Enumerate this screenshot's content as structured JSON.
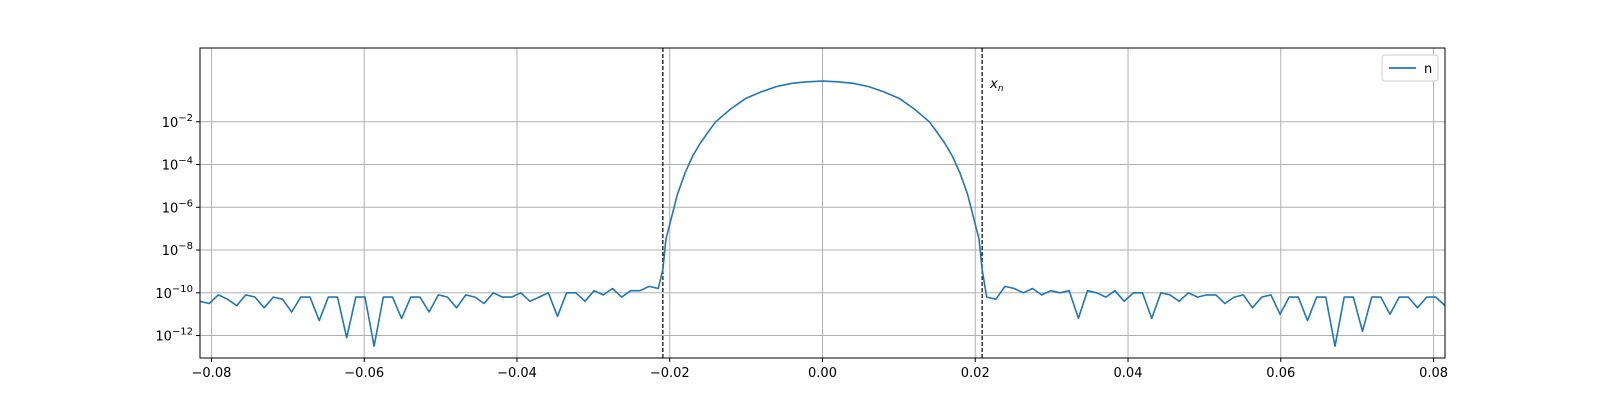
{
  "chart_data": {
    "type": "line",
    "title": "",
    "xlabel": "",
    "ylabel": "",
    "xlim": [
      -0.0815,
      0.0815
    ],
    "ylim_log10": [
      -13.05,
      1.45
    ],
    "yscale": "log",
    "grid": true,
    "legend": {
      "placement": "top-right"
    },
    "xticks": [
      {
        "value": -0.08,
        "label": "−0.08"
      },
      {
        "value": -0.06,
        "label": "−0.06"
      },
      {
        "value": -0.04,
        "label": "−0.04"
      },
      {
        "value": -0.02,
        "label": "−0.02"
      },
      {
        "value": 0.0,
        "label": "0.00"
      },
      {
        "value": 0.02,
        "label": "0.02"
      },
      {
        "value": 0.04,
        "label": "0.04"
      },
      {
        "value": 0.06,
        "label": "0.06"
      },
      {
        "value": 0.08,
        "label": "0.08"
      }
    ],
    "yticks": [
      {
        "exp": -2,
        "base": "10",
        "power": "−2"
      },
      {
        "exp": -4,
        "base": "10",
        "power": "−4"
      },
      {
        "exp": -6,
        "base": "10",
        "power": "−6"
      },
      {
        "exp": -8,
        "base": "10",
        "power": "−8"
      },
      {
        "exp": -10,
        "base": "10",
        "power": "−10"
      },
      {
        "exp": -12,
        "base": "10",
        "power": "−12"
      }
    ],
    "series": [
      {
        "name": "n",
        "color": "#1f77b4",
        "x": [
          -0.0815,
          -0.0803,
          -0.0791,
          -0.0779,
          -0.0767,
          -0.0755,
          -0.0743,
          -0.0731,
          -0.0719,
          -0.0707,
          -0.0695,
          -0.0683,
          -0.0671,
          -0.0659,
          -0.0647,
          -0.0635,
          -0.0623,
          -0.0611,
          -0.0599,
          -0.0587,
          -0.0575,
          -0.0563,
          -0.0551,
          -0.0539,
          -0.0527,
          -0.0515,
          -0.0503,
          -0.0491,
          -0.0479,
          -0.0467,
          -0.0455,
          -0.0443,
          -0.0431,
          -0.0419,
          -0.0407,
          -0.0395,
          -0.0383,
          -0.0371,
          -0.0359,
          -0.0347,
          -0.0335,
          -0.0323,
          -0.0311,
          -0.0299,
          -0.0287,
          -0.0275,
          -0.0263,
          -0.0251,
          -0.0239,
          -0.0227,
          -0.0215,
          -0.0209,
          -0.0205,
          -0.02,
          -0.019,
          -0.018,
          -0.017,
          -0.016,
          -0.015,
          -0.014,
          -0.012,
          -0.01,
          -0.008,
          -0.006,
          -0.004,
          -0.002,
          0.0,
          0.002,
          0.004,
          0.006,
          0.008,
          0.01,
          0.012,
          0.014,
          0.015,
          0.016,
          0.017,
          0.018,
          0.019,
          0.02,
          0.0205,
          0.0209,
          0.0215,
          0.0227,
          0.0239,
          0.0251,
          0.0263,
          0.0275,
          0.0287,
          0.0299,
          0.0311,
          0.0323,
          0.0335,
          0.0347,
          0.0359,
          0.0371,
          0.0383,
          0.0395,
          0.0407,
          0.0419,
          0.0431,
          0.0443,
          0.0455,
          0.0467,
          0.0479,
          0.0491,
          0.0503,
          0.0515,
          0.0527,
          0.0539,
          0.0551,
          0.0563,
          0.0575,
          0.0587,
          0.0599,
          0.0611,
          0.0623,
          0.0635,
          0.0647,
          0.0659,
          0.0671,
          0.0683,
          0.0695,
          0.0707,
          0.0719,
          0.0731,
          0.0743,
          0.0755,
          0.0767,
          0.0779,
          0.0791,
          0.0803,
          0.0815
        ],
        "log10_y": [
          -10.4,
          -10.5,
          -10.1,
          -10.3,
          -10.6,
          -10.1,
          -10.2,
          -10.7,
          -10.2,
          -10.3,
          -10.9,
          -10.2,
          -10.2,
          -11.3,
          -10.2,
          -10.2,
          -12.1,
          -10.2,
          -10.2,
          -12.5,
          -10.2,
          -10.2,
          -11.2,
          -10.2,
          -10.2,
          -10.9,
          -10.1,
          -10.2,
          -10.7,
          -10.1,
          -10.2,
          -10.5,
          -10.0,
          -10.2,
          -10.2,
          -10.0,
          -10.4,
          -10.2,
          -10.0,
          -11.1,
          -10.0,
          -10.0,
          -10.4,
          -9.9,
          -10.1,
          -9.8,
          -10.2,
          -9.9,
          -9.9,
          -9.7,
          -9.8,
          -8.9,
          -7.5,
          -6.8,
          -5.4,
          -4.4,
          -3.6,
          -3.0,
          -2.5,
          -2.0,
          -1.4,
          -0.9,
          -0.6,
          -0.35,
          -0.2,
          -0.13,
          -0.1,
          -0.13,
          -0.2,
          -0.35,
          -0.6,
          -0.9,
          -1.4,
          -2.0,
          -2.5,
          -3.0,
          -3.6,
          -4.4,
          -5.4,
          -6.8,
          -7.5,
          -8.9,
          -10.2,
          -10.3,
          -9.7,
          -9.8,
          -10.0,
          -9.8,
          -10.1,
          -9.9,
          -10.0,
          -9.9,
          -11.2,
          -9.9,
          -10.0,
          -10.2,
          -9.9,
          -10.4,
          -10.0,
          -10.0,
          -11.2,
          -10.0,
          -10.1,
          -10.4,
          -10.0,
          -10.2,
          -10.1,
          -10.1,
          -10.5,
          -10.2,
          -10.1,
          -10.7,
          -10.2,
          -10.1,
          -11.0,
          -10.2,
          -10.2,
          -11.3,
          -10.2,
          -10.2,
          -12.5,
          -10.2,
          -10.2,
          -11.8,
          -10.2,
          -10.2,
          -11.0,
          -10.2,
          -10.2,
          -10.7,
          -10.2,
          -10.2,
          -10.6,
          -10.2,
          -10.2
        ]
      }
    ],
    "vlines": [
      {
        "x": -0.0209,
        "style": "dashed",
        "color": "#000000"
      },
      {
        "x": 0.0209,
        "style": "dashed",
        "color": "#000000",
        "label_base": "x",
        "label_sub": "n"
      }
    ]
  }
}
